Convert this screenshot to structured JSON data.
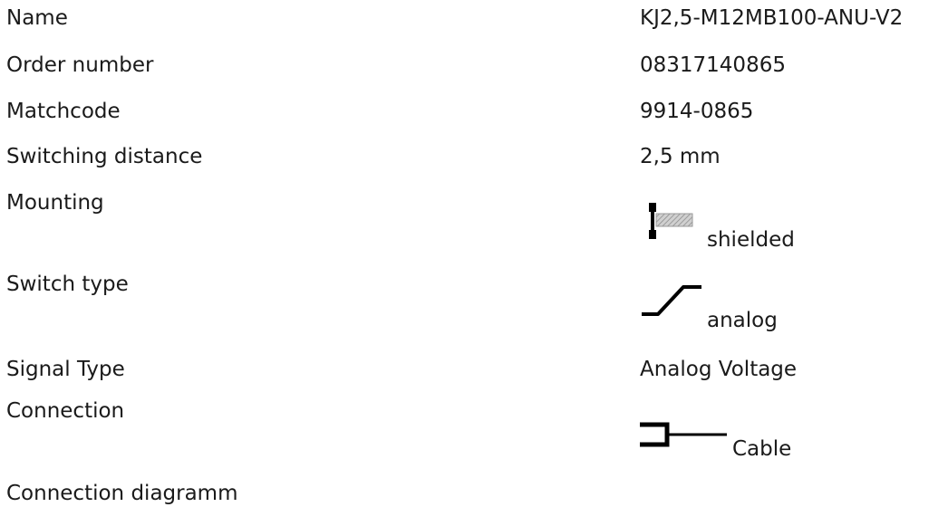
{
  "rows": [
    {
      "label": "Name",
      "value": "KJ2,5-M12MB100-ANU-V2"
    },
    {
      "label": "Order number",
      "value": "08317140865"
    },
    {
      "label": "Matchcode",
      "value": "9914-0865"
    },
    {
      "label": "Switching distance",
      "value": "2,5 mm"
    },
    {
      "label": "Mounting",
      "value": "shielded",
      "icon": "shielded-mounting-icon"
    },
    {
      "label": "Switch type",
      "value": "analog",
      "icon": "analog-switch-icon"
    },
    {
      "label": "Signal Type",
      "value": "Analog Voltage"
    },
    {
      "label": "Connection",
      "value": "Cable",
      "icon": "cable-connection-icon"
    },
    {
      "label": "Connection diagramm"
    }
  ]
}
